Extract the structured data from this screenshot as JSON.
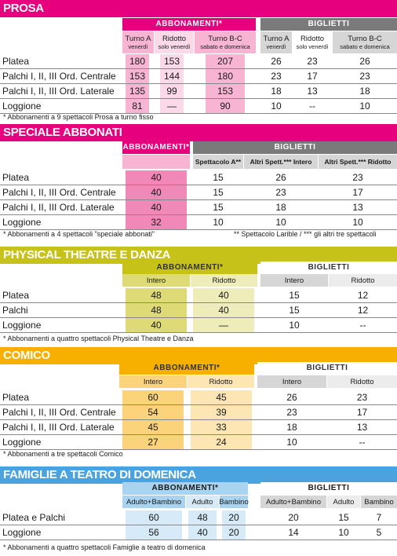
{
  "prosa": {
    "title": "PROSA",
    "abb_header": "ABBONAMENTI*",
    "big_header": "BIGLIETTI",
    "abb_cols": [
      [
        "Turno A",
        "venerdì"
      ],
      [
        "Ridotto",
        "solo venerdì"
      ],
      [
        "Turno B-C",
        "sabato e domenica"
      ]
    ],
    "big_cols": [
      [
        "Turno A",
        "venerdì"
      ],
      [
        "Ridotto",
        "solo venerdì"
      ],
      [
        "Turno B-C",
        "sabato e domenica"
      ]
    ],
    "rows": [
      {
        "label": "Platea",
        "abb": [
          "180",
          "153",
          "207"
        ],
        "big": [
          "26",
          "23",
          "26"
        ]
      },
      {
        "label": "Palchi I, II, III Ord. Centrale",
        "abb": [
          "153",
          "144",
          "180"
        ],
        "big": [
          "23",
          "17",
          "23"
        ]
      },
      {
        "label": "Palchi I, II, III Ord. Laterale",
        "abb": [
          "135",
          "99",
          "153"
        ],
        "big": [
          "18",
          "13",
          "18"
        ]
      },
      {
        "label": "Loggione",
        "abb": [
          "81",
          "—",
          "90"
        ],
        "big": [
          "10",
          "--",
          "10"
        ]
      }
    ],
    "note": "* Abbonamenti a 9 spettacoli Prosa a turno fisso"
  },
  "speciale": {
    "title": "SPECIALE ABBONATI",
    "abb_header": "ABBONAMENTI*",
    "big_header": "BIGLIETTI",
    "big_cols": [
      "Spettacolo A**",
      "Altri Spett.*** Intero",
      "Altri Spett.*** Ridotto"
    ],
    "rows": [
      {
        "label": "Platea",
        "abb": "40",
        "big": [
          "15",
          "26",
          "23"
        ]
      },
      {
        "label": "Palchi I, II, III Ord. Centrale",
        "abb": "40",
        "big": [
          "15",
          "23",
          "17"
        ]
      },
      {
        "label": "Palchi I, II, III Ord. Laterale",
        "abb": "40",
        "big": [
          "15",
          "18",
          "13"
        ]
      },
      {
        "label": "Loggione",
        "abb": "32",
        "big": [
          "10",
          "10",
          "10"
        ]
      }
    ],
    "note": "* Abbonamenti a 4 spettacoli \"speciale abbonati\"",
    "note2": "** Spettacolo Larible / *** gli altri tre spettacoli"
  },
  "physical": {
    "title": "PHYSICAL THEATRE E DANZA",
    "abb_header": "ABBONAMENTI*",
    "big_header": "BIGLIETTI",
    "abb_cols": [
      "Intero",
      "Ridotto"
    ],
    "big_cols": [
      "Intero",
      "Ridotto"
    ],
    "rows": [
      {
        "label": "Platea",
        "abb": [
          "48",
          "40"
        ],
        "big": [
          "15",
          "12"
        ]
      },
      {
        "label": "Palchi",
        "abb": [
          "48",
          "40"
        ],
        "big": [
          "15",
          "12"
        ]
      },
      {
        "label": "Loggione",
        "abb": [
          "40",
          "—"
        ],
        "big": [
          "10",
          "--"
        ]
      }
    ],
    "note": "* Abbonamenti a quattro spettacoli Physical Theatre e Danza"
  },
  "comico": {
    "title": "COMICO",
    "abb_header": "ABBONAMENTI*",
    "big_header": "BIGLIETTI",
    "abb_cols": [
      "Intero",
      "Ridotto"
    ],
    "big_cols": [
      "Intero",
      "Ridotto"
    ],
    "rows": [
      {
        "label": "Platea",
        "abb": [
          "60",
          "45"
        ],
        "big": [
          "26",
          "23"
        ]
      },
      {
        "label": "Palchi I, II, III Ord. Centrale",
        "abb": [
          "54",
          "39"
        ],
        "big": [
          "23",
          "17"
        ]
      },
      {
        "label": "Palchi I, II, III Ord. Laterale",
        "abb": [
          "45",
          "33"
        ],
        "big": [
          "18",
          "13"
        ]
      },
      {
        "label": "Loggione",
        "abb": [
          "27",
          "24"
        ],
        "big": [
          "10",
          "--"
        ]
      }
    ],
    "note": "* Abbonamenti a tre spettacoli Comico"
  },
  "famiglie": {
    "title": "FAMIGLIE A TEATRO DI DOMENICA",
    "abb_header": "ABBONAMENTI*",
    "big_header": "BIGLIETTI",
    "abb_cols": [
      "Adulto+Bambino",
      "Adulto",
      "Bambino"
    ],
    "big_cols": [
      "Adulto+Bambino",
      "Adulto",
      "Bambino"
    ],
    "rows": [
      {
        "label": "Platea e Palchi",
        "abb": [
          "60",
          "48",
          "20"
        ],
        "big": [
          "20",
          "15",
          "7"
        ]
      },
      {
        "label": "Loggione",
        "abb": [
          "56",
          "40",
          "20"
        ],
        "big": [
          "14",
          "10",
          "5"
        ]
      }
    ],
    "note": "* Abbonamenti a quattro spettacoli Famiglie a teatro di domenica"
  },
  "colors": {
    "magenta": "#e6007e",
    "pink_light": "#f7b5d3",
    "pink_mid": "#f088b8",
    "pink_pale": "#fbd9e8",
    "grey_dark": "#7a7a7a",
    "grey_light": "#d6d6d6",
    "olive": "#c6c21a",
    "olive_mid": "#dedb77",
    "olive_pale": "#eeecb9",
    "orange": "#f8b000",
    "orange_mid": "#fbd37a",
    "orange_pale": "#fde6b4",
    "blue": "#4aa3df",
    "blue_mid": "#a9d3ef",
    "blue_pale": "#d6eaf7"
  }
}
